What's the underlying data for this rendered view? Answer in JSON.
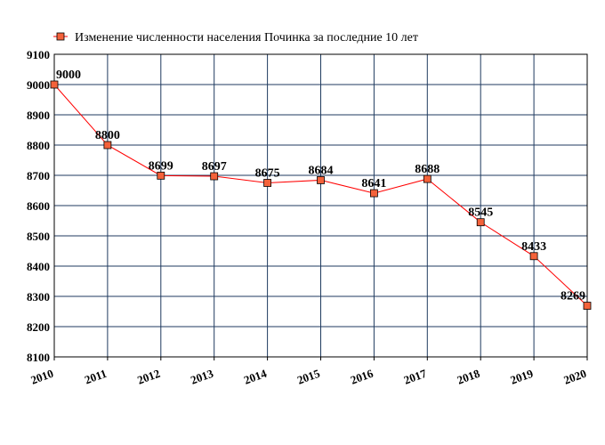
{
  "chart_data": {
    "type": "line",
    "title": "",
    "xlabel": "",
    "ylabel": "",
    "legend": {
      "label": "Изменение численности населения Починка за последние 10 лет",
      "position": "top"
    },
    "x": [
      "2010",
      "2011",
      "2012",
      "2013",
      "2014",
      "2015",
      "2016",
      "2017",
      "2018",
      "2019",
      "2020"
    ],
    "series": [
      {
        "name": "Изменение численности населения Починка за последние 10 лет",
        "values": [
          9000,
          8800,
          8699,
          8697,
          8675,
          8684,
          8641,
          8688,
          8545,
          8433,
          8269
        ],
        "labels": [
          "9000",
          "8800",
          "8699",
          "8697",
          "8675",
          "8684",
          "8641",
          "8688",
          "8545",
          "8433",
          "8269"
        ]
      }
    ],
    "ylim": [
      8100,
      9100
    ],
    "yticks": [
      "8100",
      "8200",
      "8300",
      "8400",
      "8500",
      "8600",
      "8700",
      "8800",
      "8900",
      "9000",
      "9100"
    ],
    "grid": true,
    "colors": {
      "line": "#ff0000",
      "marker_fill": "#f4623a",
      "marker_stroke": "#000000",
      "grid": "#1f3a5f",
      "axis": "#000000"
    }
  }
}
